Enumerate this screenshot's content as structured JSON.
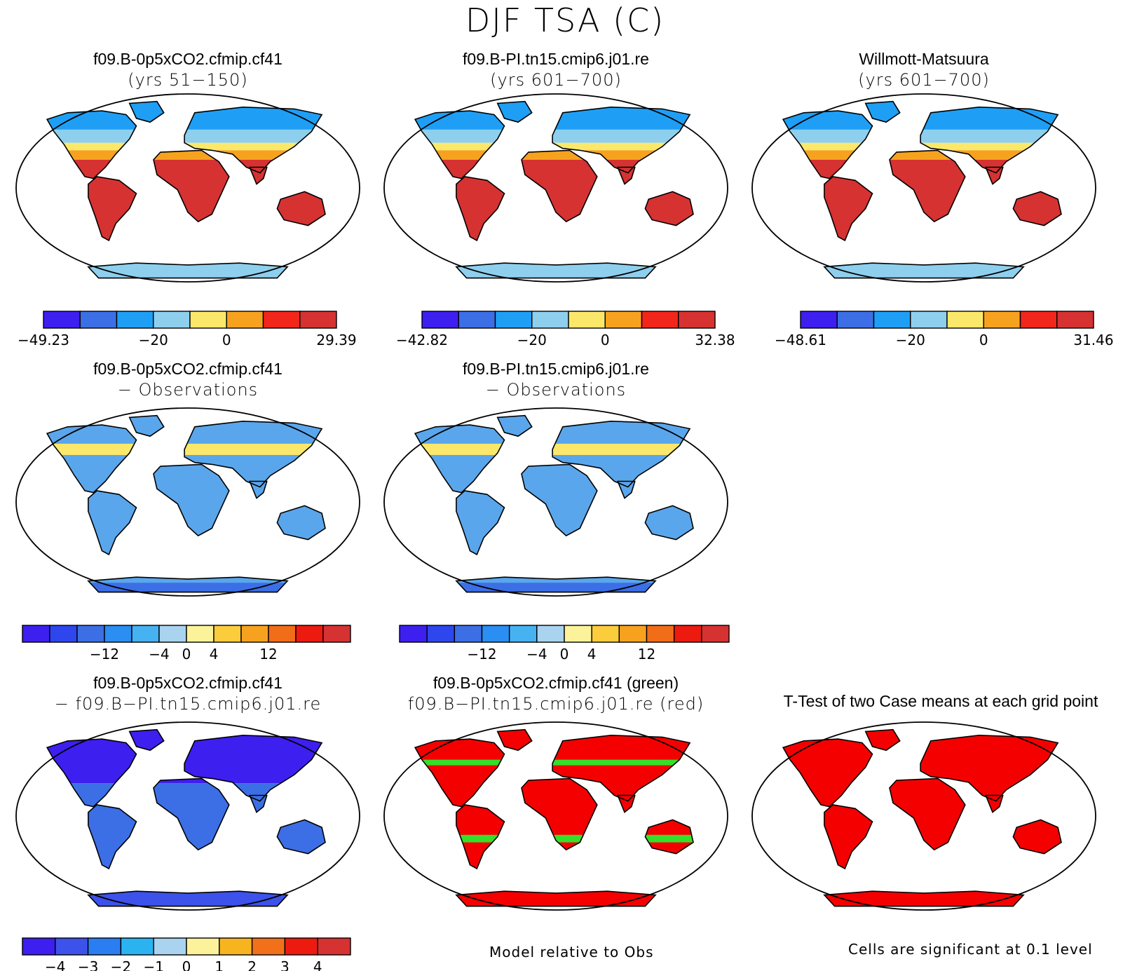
{
  "figure_title": "DJF TSA (C)",
  "row1": [
    {
      "title": "f09.B-0p5xCO2.cfmip.cf41",
      "subtitle": "(yrs 51−150)",
      "colorbar": {
        "colors": [
          "#3d1ff0",
          "#3c6fe6",
          "#1e9ff5",
          "#8ecfee",
          "#fbe86b",
          "#f7a21f",
          "#f2261a",
          "#d63232"
        ],
        "labels": [
          "−49.23",
          "−20",
          "0",
          "29.39"
        ],
        "label_fractions": [
          0,
          0.375,
          0.625,
          1
        ]
      }
    },
    {
      "title": "f09.B-PI.tn15.cmip6.j01.re",
      "subtitle": "(yrs 601−700)",
      "colorbar": {
        "colors": [
          "#3d1ff0",
          "#3c6fe6",
          "#1e9ff5",
          "#8ecfee",
          "#fbe86b",
          "#f7a21f",
          "#f2261a",
          "#d63232"
        ],
        "labels": [
          "−42.82",
          "−20",
          "0",
          "32.38"
        ],
        "label_fractions": [
          0,
          0.375,
          0.625,
          1
        ]
      }
    },
    {
      "title": "Willmott-Matsuura",
      "subtitle": "(yrs 601−700)",
      "colorbar": {
        "colors": [
          "#3d1ff0",
          "#3c6fe6",
          "#1e9ff5",
          "#8ecfee",
          "#fbe86b",
          "#f7a21f",
          "#f2261a",
          "#d63232"
        ],
        "labels": [
          "−48.61",
          "−20",
          "0",
          "31.46"
        ],
        "label_fractions": [
          0,
          0.375,
          0.625,
          1
        ]
      }
    }
  ],
  "row2": [
    {
      "title": "f09.B-0p5xCO2.cfmip.cf41",
      "subtitle": "− Observations"
    },
    {
      "title": "f09.B-PI.tn15.cmip6.j01.re",
      "subtitle": "− Observations"
    }
  ],
  "row2_colorbar": {
    "colors": [
      "#3d1ff0",
      "#2d46ee",
      "#3c6fe6",
      "#2a8ef2",
      "#46b2f2",
      "#a9d3ee",
      "#fbf29a",
      "#fbcd3c",
      "#f7a21f",
      "#f26d18",
      "#ed1a10",
      "#d63232"
    ],
    "labels": [
      "−12",
      "−4",
      "0",
      "4",
      "12"
    ],
    "label_fractions": [
      0.25,
      0.4167,
      0.5,
      0.5833,
      0.75
    ]
  },
  "row3": [
    {
      "title": "f09.B-0p5xCO2.cfmip.cf41",
      "subtitle": "− f09.B−PI.tn15.cmip6.j01.re"
    },
    {
      "title": "f09.B-0p5xCO2.cfmip.cf41 (green)",
      "subtitle": "f09.B−PI.tn15.cmip6.j01.re (red)"
    },
    {
      "title": "T-Test of two Case means at each grid point",
      "subtitle": ""
    }
  ],
  "row3_colorbar": {
    "colors": [
      "#3d1ff0",
      "#3c52ea",
      "#2a7ef2",
      "#2bb2f0",
      "#a9d3ee",
      "#fbf29a",
      "#f7b41f",
      "#f2701a",
      "#ed1a10",
      "#d63232"
    ],
    "labels": [
      "−4",
      "−3",
      "−2",
      "−1",
      "0",
      "1",
      "2",
      "3",
      "4"
    ],
    "label_fractions": [
      0.1,
      0.2,
      0.3,
      0.4,
      0.5,
      0.6,
      0.7,
      0.8,
      0.9
    ]
  },
  "footnotes": {
    "model_relative": "Model relative to Obs",
    "significance": "Cells are significant at 0.1 level"
  },
  "map_palettes": {
    "abs_nh": "#1e9ff5",
    "abs_mid": "#fbe86b",
    "abs_warm": "#f7a21f",
    "abs_trop": "#d63232",
    "abs_ant": "#8ecfee",
    "bias_main": "#5aa6ec",
    "bias_warm": "#fbe86b",
    "bias_cold": "#3c6fe6",
    "diff_nh": "#3d1ff0",
    "diff_trop": "#3c6fe6",
    "diff_ant": "#3c52ea",
    "sig_red": "#f50000",
    "sig_green": "#35e02a"
  }
}
